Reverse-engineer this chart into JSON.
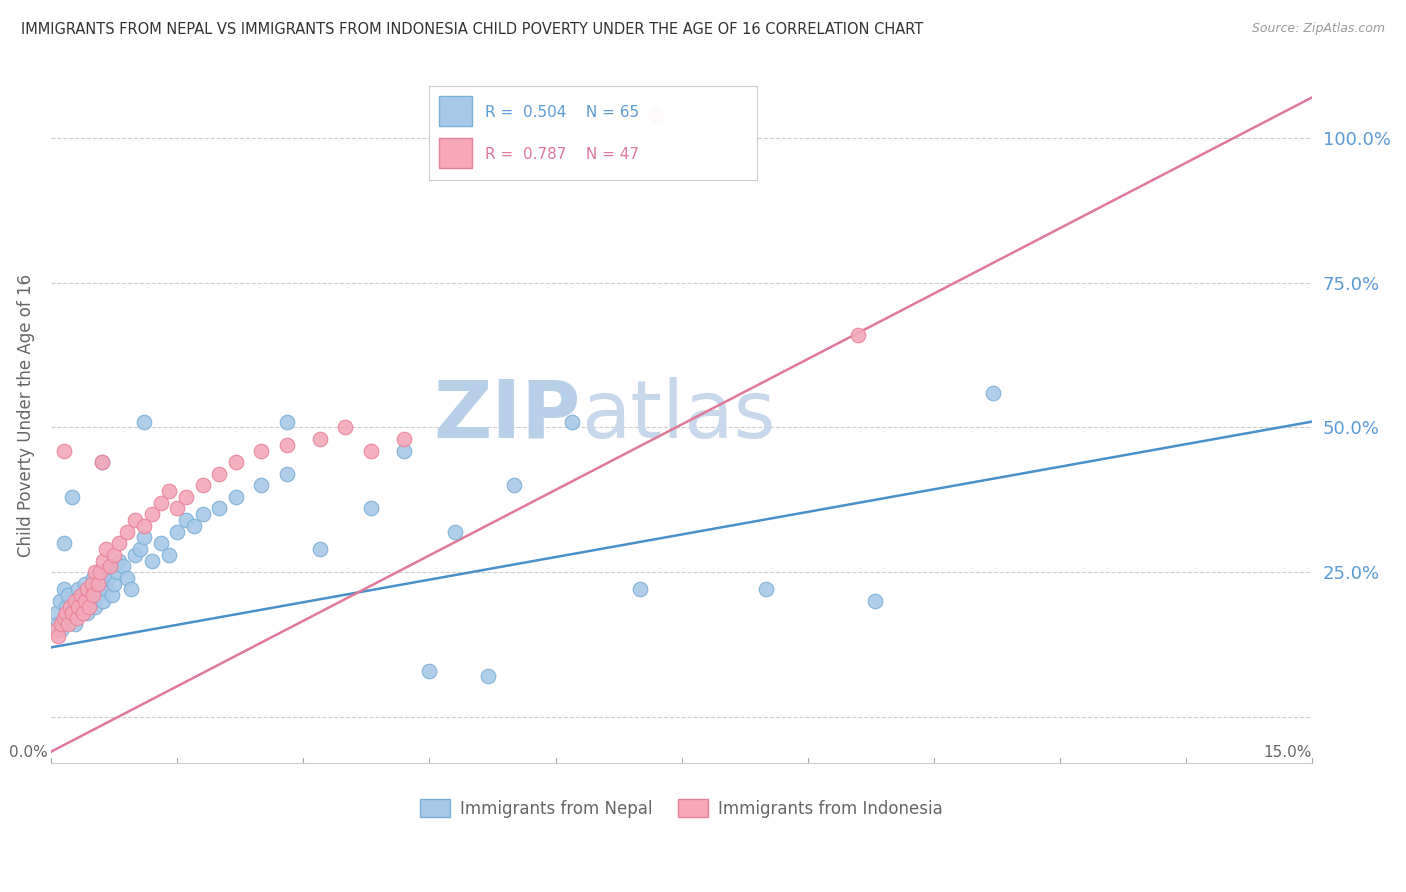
{
  "title": "IMMIGRANTS FROM NEPAL VS IMMIGRANTS FROM INDONESIA CHILD POVERTY UNDER THE AGE OF 16 CORRELATION CHART",
  "source": "Source: ZipAtlas.com",
  "ylabel": "Child Poverty Under the Age of 16",
  "xlim": [
    0.0,
    15.0
  ],
  "ylim": [
    -8.0,
    112.0
  ],
  "blue_color": "#a8c8e8",
  "pink_color": "#f4a8b8",
  "blue_edge_color": "#7aafd4",
  "pink_edge_color": "#e8809a",
  "blue_line_color": "#4a90c8",
  "pink_line_color": "#e07898",
  "axis_label_color": "#5b9bd5",
  "watermark_color": "#dce8f4",
  "background_color": "#ffffff",
  "nepal_line_x": [
    0.0,
    15.0
  ],
  "nepal_line_y": [
    12.0,
    51.0
  ],
  "indonesia_line_x": [
    0.0,
    15.0
  ],
  "indonesia_line_y": [
    -6.0,
    107.0
  ],
  "nepal_x": [
    0.05,
    0.08,
    0.1,
    0.12,
    0.15,
    0.18,
    0.2,
    0.22,
    0.25,
    0.28,
    0.3,
    0.32,
    0.35,
    0.38,
    0.4,
    0.42,
    0.45,
    0.48,
    0.5,
    0.52,
    0.55,
    0.58,
    0.6,
    0.62,
    0.65,
    0.68,
    0.7,
    0.72,
    0.75,
    0.78,
    0.8,
    0.85,
    0.9,
    0.95,
    1.0,
    1.05,
    1.1,
    1.2,
    1.3,
    1.4,
    1.5,
    1.6,
    1.7,
    1.8,
    2.0,
    2.2,
    2.5,
    2.8,
    3.2,
    3.8,
    4.2,
    4.8,
    5.5,
    6.2,
    7.0,
    8.5,
    9.8,
    11.2,
    0.15,
    0.25,
    0.6,
    1.1,
    2.8,
    4.5,
    5.2
  ],
  "nepal_y": [
    18,
    16,
    20,
    15,
    22,
    19,
    21,
    17,
    18,
    16,
    20,
    22,
    19,
    21,
    23,
    18,
    20,
    22,
    24,
    19,
    21,
    23,
    25,
    20,
    22,
    24,
    26,
    21,
    23,
    25,
    27,
    26,
    24,
    22,
    28,
    29,
    31,
    27,
    30,
    28,
    32,
    34,
    33,
    35,
    36,
    38,
    40,
    42,
    29,
    36,
    46,
    32,
    40,
    51,
    22,
    22,
    20,
    56,
    30,
    38,
    44,
    51,
    51,
    8,
    7
  ],
  "indonesia_x": [
    0.05,
    0.08,
    0.12,
    0.15,
    0.18,
    0.2,
    0.22,
    0.25,
    0.28,
    0.3,
    0.32,
    0.35,
    0.38,
    0.4,
    0.42,
    0.45,
    0.48,
    0.5,
    0.52,
    0.55,
    0.58,
    0.62,
    0.65,
    0.7,
    0.75,
    0.8,
    0.9,
    1.0,
    1.1,
    1.2,
    1.3,
    1.4,
    1.5,
    1.6,
    1.8,
    2.0,
    2.2,
    2.5,
    2.8,
    3.2,
    3.5,
    3.8,
    4.2,
    7.2,
    9.6,
    0.15,
    0.6
  ],
  "indonesia_y": [
    15,
    14,
    16,
    17,
    18,
    16,
    19,
    18,
    20,
    17,
    19,
    21,
    18,
    20,
    22,
    19,
    23,
    21,
    25,
    23,
    25,
    27,
    29,
    26,
    28,
    30,
    32,
    34,
    33,
    35,
    37,
    39,
    36,
    38,
    40,
    42,
    44,
    46,
    47,
    48,
    50,
    46,
    48,
    104,
    66,
    46,
    44
  ]
}
